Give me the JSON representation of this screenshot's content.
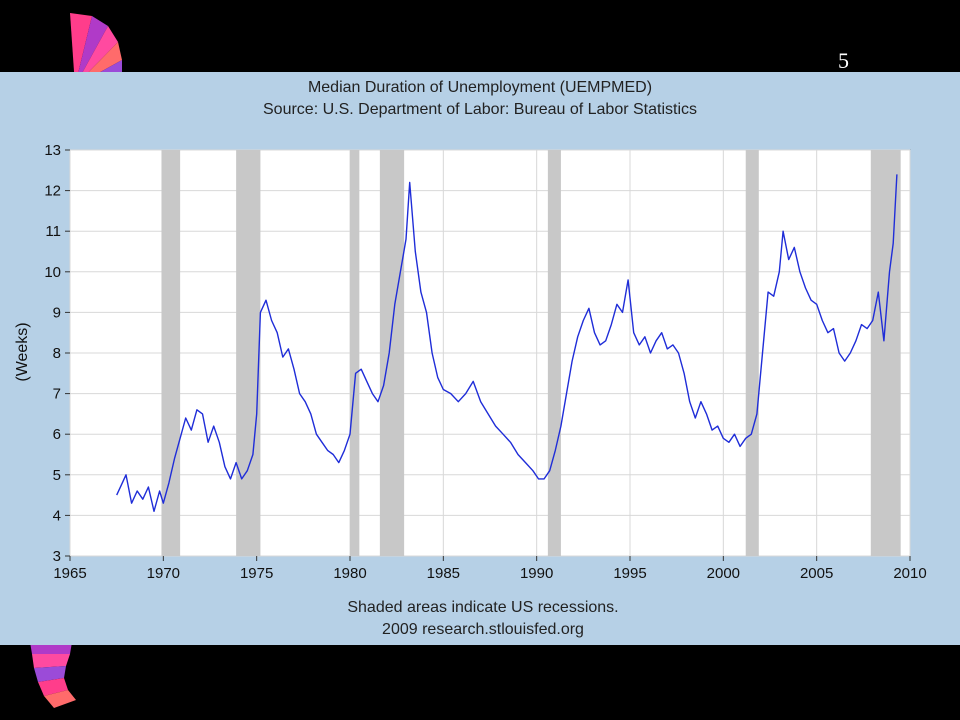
{
  "slide": {
    "number": "5"
  },
  "colors": {
    "background": "#000000",
    "panel": "#b6d0e6",
    "plot_bg": "#ffffff",
    "series": "#1f2dd8",
    "recession": "#c8c8c8",
    "grid": "#d8d8d8"
  },
  "chart_data": {
    "type": "line",
    "title": "Median Duration of Unemployment (UEMPMED)",
    "subtitle": "Source: U.S. Department of Labor: Bureau of Labor Statistics",
    "xlabel": "",
    "ylabel": "(Weeks)",
    "xlim": [
      1965,
      2010
    ],
    "ylim": [
      3,
      13
    ],
    "xticks": [
      1965,
      1970,
      1975,
      1980,
      1985,
      1990,
      1995,
      2000,
      2005,
      2010
    ],
    "yticks": [
      3,
      4,
      5,
      6,
      7,
      8,
      9,
      10,
      11,
      12,
      13
    ],
    "grid": true,
    "legend": "none",
    "recessions": [
      [
        1969.9,
        1970.9
      ],
      [
        1973.9,
        1975.2
      ],
      [
        1980.0,
        1980.5
      ],
      [
        1981.6,
        1982.9
      ],
      [
        1990.6,
        1991.3
      ],
      [
        2001.2,
        2001.9
      ],
      [
        2007.9,
        2009.5
      ]
    ],
    "footnote": "Shaded areas indicate US recessions.",
    "credit": "2009 research.stlouisfed.org",
    "series": [
      {
        "x": [
          1967.5,
          1967.8,
          1968.0,
          1968.3,
          1968.6,
          1968.9,
          1969.2,
          1969.5,
          1969.8,
          1970.0,
          1970.3,
          1970.6,
          1970.9,
          1971.2,
          1971.5,
          1971.8,
          1972.1,
          1972.4,
          1972.7,
          1973.0,
          1973.3,
          1973.6,
          1973.9,
          1974.2,
          1974.5,
          1974.8,
          1975.0,
          1975.2,
          1975.5,
          1975.8,
          1976.1,
          1976.4,
          1976.7,
          1977.0,
          1977.3,
          1977.6,
          1977.9,
          1978.2,
          1978.5,
          1978.8,
          1979.1,
          1979.4,
          1979.7,
          1980.0,
          1980.3,
          1980.6,
          1980.9,
          1981.2,
          1981.5,
          1981.8,
          1982.1,
          1982.4,
          1982.7,
          1983.0,
          1983.2,
          1983.5,
          1983.8,
          1984.1,
          1984.4,
          1984.7,
          1985.0,
          1985.4,
          1985.8,
          1986.2,
          1986.6,
          1987.0,
          1987.4,
          1987.8,
          1988.2,
          1988.6,
          1989.0,
          1989.4,
          1989.8,
          1990.1,
          1990.4,
          1990.7,
          1991.0,
          1991.3,
          1991.6,
          1991.9,
          1992.2,
          1992.5,
          1992.8,
          1993.1,
          1993.4,
          1993.7,
          1994.0,
          1994.3,
          1994.6,
          1994.9,
          1995.2,
          1995.5,
          1995.8,
          1996.1,
          1996.4,
          1996.7,
          1997.0,
          1997.3,
          1997.6,
          1997.9,
          1998.2,
          1998.5,
          1998.8,
          1999.1,
          1999.4,
          1999.7,
          2000.0,
          2000.3,
          2000.6,
          2000.9,
          2001.2,
          2001.5,
          2001.8,
          2002.1,
          2002.4,
          2002.7,
          2003.0,
          2003.2,
          2003.5,
          2003.8,
          2004.1,
          2004.4,
          2004.7,
          2005.0,
          2005.3,
          2005.6,
          2005.9,
          2006.2,
          2006.5,
          2006.8,
          2007.1,
          2007.4,
          2007.7,
          2008.0,
          2008.3,
          2008.6,
          2008.9,
          2009.1,
          2009.3
        ],
        "y": [
          4.5,
          4.8,
          5.0,
          4.3,
          4.6,
          4.4,
          4.7,
          4.1,
          4.6,
          4.3,
          4.8,
          5.4,
          5.9,
          6.4,
          6.1,
          6.6,
          6.5,
          5.8,
          6.2,
          5.8,
          5.2,
          4.9,
          5.3,
          4.9,
          5.1,
          5.5,
          6.5,
          9.0,
          9.3,
          8.8,
          8.5,
          7.9,
          8.1,
          7.6,
          7.0,
          6.8,
          6.5,
          6.0,
          5.8,
          5.6,
          5.5,
          5.3,
          5.6,
          6.0,
          7.5,
          7.6,
          7.3,
          7.0,
          6.8,
          7.2,
          8.0,
          9.2,
          10.0,
          10.8,
          12.2,
          10.5,
          9.5,
          9.0,
          8.0,
          7.4,
          7.1,
          7.0,
          6.8,
          7.0,
          7.3,
          6.8,
          6.5,
          6.2,
          6.0,
          5.8,
          5.5,
          5.3,
          5.1,
          4.9,
          4.9,
          5.1,
          5.6,
          6.2,
          7.0,
          7.8,
          8.4,
          8.8,
          9.1,
          8.5,
          8.2,
          8.3,
          8.7,
          9.2,
          9.0,
          9.8,
          8.5,
          8.2,
          8.4,
          8.0,
          8.3,
          8.5,
          8.1,
          8.2,
          8.0,
          7.5,
          6.8,
          6.4,
          6.8,
          6.5,
          6.1,
          6.2,
          5.9,
          5.8,
          6.0,
          5.7,
          5.9,
          6.0,
          6.5,
          8.0,
          9.5,
          9.4,
          10.0,
          11.0,
          10.3,
          10.6,
          10.0,
          9.6,
          9.3,
          9.2,
          8.8,
          8.5,
          8.6,
          8.0,
          7.8,
          8.0,
          8.3,
          8.7,
          8.6,
          8.8,
          9.5,
          8.3,
          10.0,
          10.7,
          12.4
        ]
      }
    ]
  }
}
